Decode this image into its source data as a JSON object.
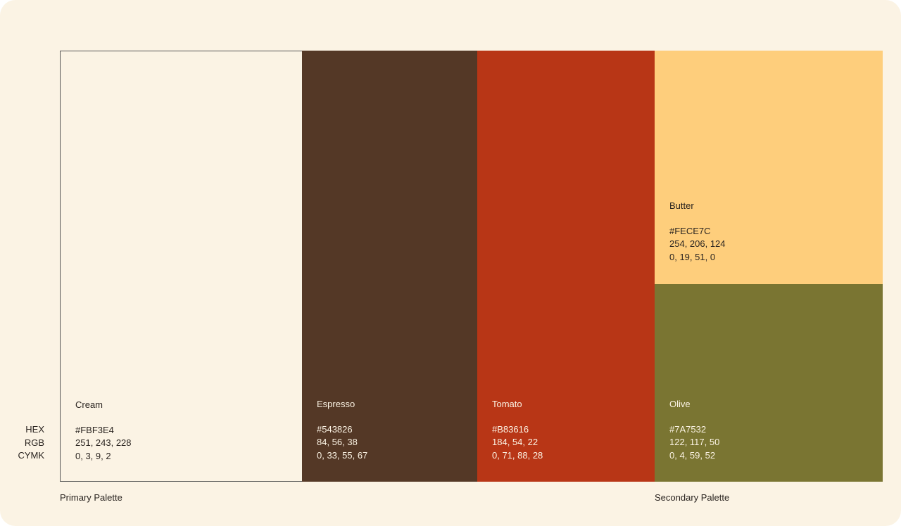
{
  "row_labels": [
    "HEX",
    "RGB",
    "CYMK"
  ],
  "swatches": [
    {
      "name": "Cream",
      "hex": "#FBF3E4",
      "rgb": "251, 243, 228",
      "cmyk": "0, 3, 9, 2"
    },
    {
      "name": "Espresso",
      "hex": "#543826",
      "rgb": "84, 56, 38",
      "cmyk": "0, 33, 55, 67"
    },
    {
      "name": "Tomato",
      "hex": "#B83616",
      "rgb": "184, 54, 22",
      "cmyk": "0, 71, 88, 28"
    },
    {
      "name": "Butter",
      "hex": "#FECE7C",
      "rgb": "254, 206, 124",
      "cmyk": "0, 19, 51, 0"
    },
    {
      "name": "Olive",
      "hex": "#7A7532",
      "rgb": "122, 117, 50",
      "cmyk": "0, 4, 59, 52"
    }
  ],
  "palette_labels": [
    "Primary Palette",
    "Secondary Palette"
  ]
}
